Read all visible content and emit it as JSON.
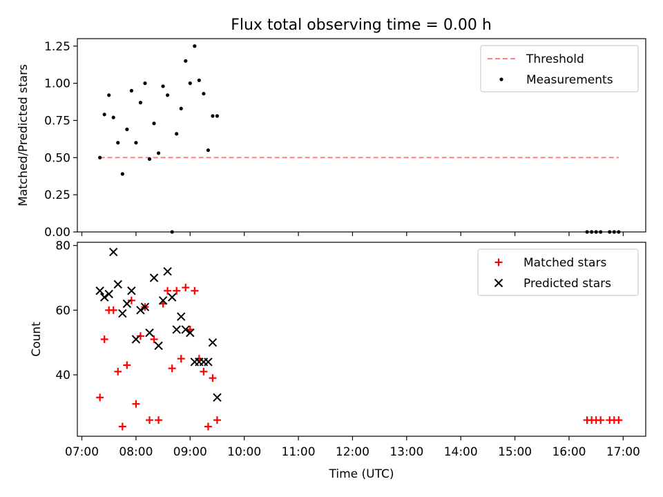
{
  "title": "Flux total observing time = 0.00 h",
  "chart_data": [
    {
      "type": "scatter",
      "ylabel": "Matched/Predicted stars",
      "xlim": [
        "06:55",
        "17:25"
      ],
      "ylim": [
        0,
        1.3
      ],
      "yticks": [
        0.0,
        0.25,
        0.5,
        0.75,
        1.0,
        1.25
      ],
      "ytick_labels": [
        "0.00",
        "0.25",
        "0.50",
        "0.75",
        "1.00",
        "1.25"
      ],
      "legend": {
        "placement": "top-right",
        "entries": [
          {
            "label": "Threshold",
            "marker": "dashed-line",
            "color": "#ff7f7f"
          },
          {
            "label": "Measurements",
            "marker": "dot",
            "color": "#000000"
          }
        ]
      },
      "threshold": {
        "name": "Threshold",
        "x": [
          "07:20",
          "16:55"
        ],
        "y": 0.5,
        "color": "#ff7f7f",
        "style": "dashed"
      },
      "series": [
        {
          "name": "Measurements",
          "marker": "dot",
          "color": "#000000",
          "points": [
            [
              "07:20",
              0.5
            ],
            [
              "07:25",
              0.79
            ],
            [
              "07:30",
              0.92
            ],
            [
              "07:35",
              0.77
            ],
            [
              "07:40",
              0.6
            ],
            [
              "07:45",
              0.39
            ],
            [
              "07:50",
              0.69
            ],
            [
              "07:55",
              0.95
            ],
            [
              "08:00",
              0.6
            ],
            [
              "08:05",
              0.87
            ],
            [
              "08:10",
              1.0
            ],
            [
              "08:15",
              0.49
            ],
            [
              "08:20",
              0.73
            ],
            [
              "08:25",
              0.53
            ],
            [
              "08:30",
              0.98
            ],
            [
              "08:35",
              0.92
            ],
            [
              "08:40",
              0.0
            ],
            [
              "08:45",
              0.66
            ],
            [
              "08:50",
              0.83
            ],
            [
              "08:55",
              1.15
            ],
            [
              "09:00",
              1.0
            ],
            [
              "09:05",
              1.25
            ],
            [
              "09:10",
              1.02
            ],
            [
              "09:15",
              0.93
            ],
            [
              "09:20",
              0.55
            ],
            [
              "09:25",
              0.78
            ],
            [
              "09:30",
              0.78
            ],
            [
              "16:20",
              0.0
            ],
            [
              "16:25",
              0.0
            ],
            [
              "16:30",
              0.0
            ],
            [
              "16:35",
              0.0
            ],
            [
              "16:45",
              0.0
            ],
            [
              "16:50",
              0.0
            ],
            [
              "16:55",
              0.0
            ]
          ]
        }
      ]
    },
    {
      "type": "scatter",
      "xlabel": "Time (UTC)",
      "ylabel": "Count",
      "xlim": [
        "06:55",
        "17:25"
      ],
      "ylim": [
        21,
        81
      ],
      "yticks": [
        40,
        60,
        80
      ],
      "ytick_labels": [
        "40",
        "60",
        "80"
      ],
      "xticks": [
        "07:00",
        "08:00",
        "09:00",
        "10:00",
        "11:00",
        "12:00",
        "13:00",
        "14:00",
        "15:00",
        "16:00",
        "17:00"
      ],
      "legend": {
        "placement": "top-right",
        "entries": [
          {
            "label": "Matched stars",
            "marker": "plus",
            "color": "#ff0000"
          },
          {
            "label": "Predicted stars",
            "marker": "x",
            "color": "#000000"
          }
        ]
      },
      "series": [
        {
          "name": "Matched stars",
          "marker": "plus",
          "color": "#ff0000",
          "points": [
            [
              "07:20",
              33
            ],
            [
              "07:25",
              51
            ],
            [
              "07:30",
              60
            ],
            [
              "07:35",
              60
            ],
            [
              "07:40",
              41
            ],
            [
              "07:45",
              24
            ],
            [
              "07:50",
              43
            ],
            [
              "07:55",
              63
            ],
            [
              "08:00",
              31
            ],
            [
              "08:05",
              52
            ],
            [
              "08:10",
              61
            ],
            [
              "08:15",
              26
            ],
            [
              "08:20",
              51
            ],
            [
              "08:25",
              26
            ],
            [
              "08:30",
              62
            ],
            [
              "08:35",
              66
            ],
            [
              "08:40",
              42
            ],
            [
              "08:45",
              66
            ],
            [
              "08:50",
              45
            ],
            [
              "08:55",
              67
            ],
            [
              "09:00",
              54
            ],
            [
              "09:05",
              66
            ],
            [
              "09:10",
              45
            ],
            [
              "09:15",
              41
            ],
            [
              "09:20",
              24
            ],
            [
              "09:25",
              39
            ],
            [
              "09:30",
              26
            ],
            [
              "16:20",
              26
            ],
            [
              "16:25",
              26
            ],
            [
              "16:30",
              26
            ],
            [
              "16:35",
              26
            ],
            [
              "16:45",
              26
            ],
            [
              "16:50",
              26
            ],
            [
              "16:55",
              26
            ]
          ]
        },
        {
          "name": "Predicted stars",
          "marker": "x",
          "color": "#000000",
          "points": [
            [
              "07:20",
              66
            ],
            [
              "07:25",
              64
            ],
            [
              "07:30",
              65
            ],
            [
              "07:35",
              78
            ],
            [
              "07:40",
              68
            ],
            [
              "07:45",
              59
            ],
            [
              "07:50",
              62
            ],
            [
              "07:55",
              66
            ],
            [
              "08:00",
              51
            ],
            [
              "08:05",
              60
            ],
            [
              "08:10",
              61
            ],
            [
              "08:15",
              53
            ],
            [
              "08:20",
              70
            ],
            [
              "08:25",
              49
            ],
            [
              "08:30",
              63
            ],
            [
              "08:35",
              72
            ],
            [
              "08:40",
              64
            ],
            [
              "08:45",
              54
            ],
            [
              "08:50",
              58
            ],
            [
              "08:55",
              54
            ],
            [
              "09:00",
              53
            ],
            [
              "09:05",
              44
            ],
            [
              "09:10",
              44
            ],
            [
              "09:15",
              44
            ],
            [
              "09:20",
              44
            ],
            [
              "09:25",
              50
            ],
            [
              "09:30",
              33
            ]
          ]
        }
      ]
    }
  ]
}
